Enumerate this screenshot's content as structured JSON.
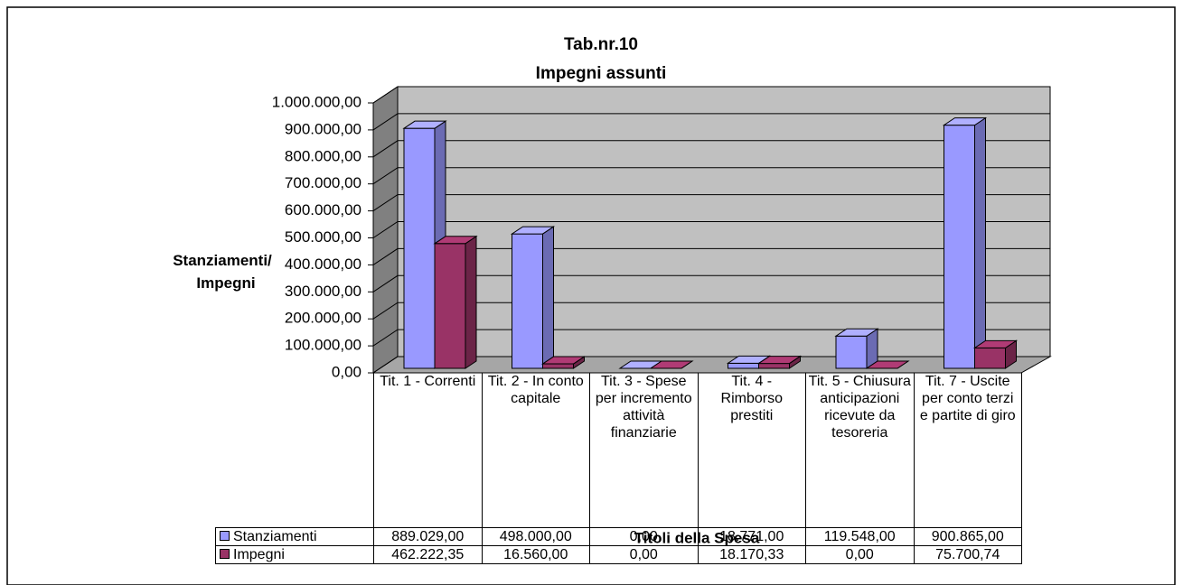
{
  "chart_data": {
    "type": "bar3d",
    "title": "Tab.nr.10",
    "subtitle": "Impegni assunti",
    "y_label": "Stanziamenti/ Impegni",
    "x_label": "Titoli della Spesa",
    "categories": [
      "Tit. 1 - Correnti",
      "Tit. 2 - In conto capitale",
      "Tit. 3 - Spese per incremento attività finanziarie",
      "Tit. 4 - Rimborso prestiti",
      "Tit. 5 - Chiusura anticipazioni ricevute da tesoreria",
      "Tit. 7 - Uscite per conto terzi e partite di giro"
    ],
    "series": [
      {
        "name": "Stanziamenti",
        "color": "#9999ff",
        "values": [
          889029.0,
          498000.0,
          0,
          18771.0,
          119548.0,
          900865.0
        ],
        "value_labels": [
          "889.029,00",
          "498.000,00",
          "0,00",
          "18.771,00",
          "119.548,00",
          "900.865,00"
        ]
      },
      {
        "name": "Impegni",
        "color": "#993366",
        "values": [
          462222.35,
          16560.0,
          0,
          18170.33,
          0,
          75700.74
        ],
        "value_labels": [
          "462.222,35",
          "16.560,00",
          "0,00",
          "18.170,33",
          "0,00",
          "75.700,74"
        ]
      }
    ],
    "ylim": [
      0,
      1000000
    ],
    "yticks": [
      {
        "value": 0,
        "label": "0,00"
      },
      {
        "value": 100000,
        "label": "100.000,00"
      },
      {
        "value": 200000,
        "label": "200.000,00"
      },
      {
        "value": 300000,
        "label": "300.000,00"
      },
      {
        "value": 400000,
        "label": "400.000,00"
      },
      {
        "value": 500000,
        "label": "500.000,00"
      },
      {
        "value": 600000,
        "label": "600.000,00"
      },
      {
        "value": 700000,
        "label": "700.000,00"
      },
      {
        "value": 800000,
        "label": "800.000,00"
      },
      {
        "value": 900000,
        "label": "900.000,00"
      },
      {
        "value": 1000000,
        "label": "1.000.000,00"
      }
    ],
    "grid": true
  }
}
